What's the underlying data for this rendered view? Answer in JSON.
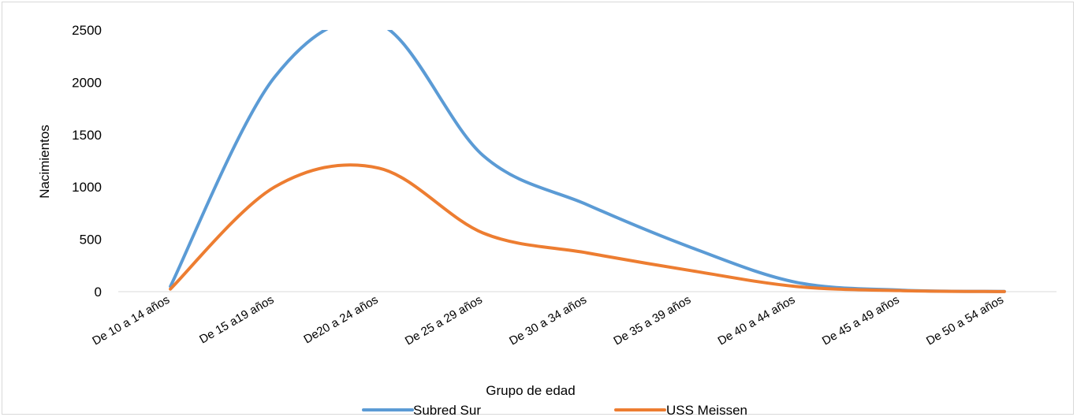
{
  "chart_data": {
    "type": "line",
    "title": "",
    "xlabel": "Grupo de edad",
    "ylabel": "Nacimientos",
    "categories": [
      "De 10 a 14 años",
      "De 15 a19 años",
      "De20 a 24 años",
      "De 25 a 29 años",
      "De 30 a 34 años",
      "De 35 a 39 años",
      "De 40 a 44 años",
      "De 45 a 49 años",
      "De 50 a 54 años"
    ],
    "series": [
      {
        "name": "Subred Sur",
        "color": "#5b9bd5",
        "values": [
          50,
          2050,
          2560,
          1300,
          830,
          420,
          90,
          15,
          2
        ]
      },
      {
        "name": "USS Meissen",
        "color": "#ed7d31",
        "values": [
          25,
          1000,
          1180,
          560,
          370,
          200,
          50,
          10,
          1
        ]
      }
    ],
    "ylim": [
      0,
      2500
    ],
    "yticks": [
      0,
      500,
      1000,
      1500,
      2000,
      2500
    ],
    "grid": false,
    "smooth": true,
    "legend_position": "bottom"
  }
}
